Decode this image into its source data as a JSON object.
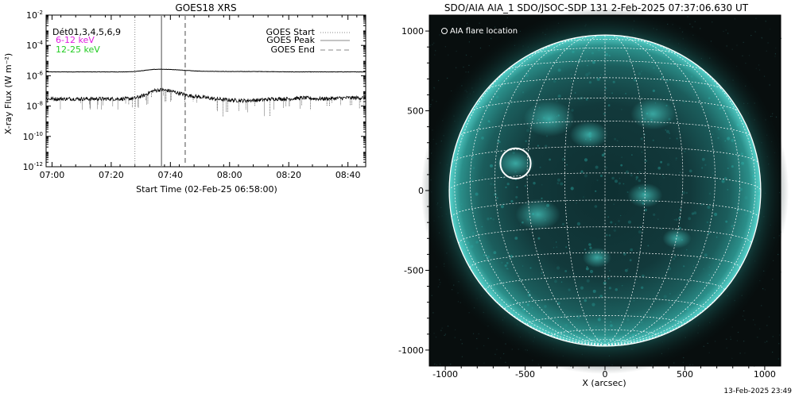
{
  "left_panel": {
    "title": "GOES18 XRS",
    "detector_text": "Dét01,3,4,5,6,9",
    "band_low_label": "6-12 keV",
    "band_high_label": "12-25 keV",
    "legend": {
      "start": "GOES Start",
      "peak": "GOES Peak",
      "end": "GOES End"
    },
    "xlabel": "Start Time (02-Feb-25 06:58:00)",
    "ylabel": "X-ray Flux (W m⁻²)"
  },
  "right_panel": {
    "title": "SDO/AIA AIA_1 SDO/JSOC-SDP 131  2-Feb-2025 07:37:06.630 UT",
    "flare_legend": "AIA flare location",
    "xlabel": "X (arcsec)",
    "footer_timestamp": "13-Feb-2025 23:49"
  },
  "colors": {
    "band_low": "#e01ee0",
    "band_high": "#22cc22",
    "sun_cyan": "#2fbfb8"
  },
  "chart_data": [
    {
      "type": "line",
      "title": "GOES18 XRS",
      "xlabel": "Start Time (02-Feb-25 06:58:00)",
      "ylabel": "X-ray Flux (W m^-2)",
      "yscale": "log",
      "xlim_minutes_after_0700": [
        -2,
        106
      ],
      "ylim": [
        1e-12,
        0.01
      ],
      "x_ticks": [
        "07:00",
        "07:20",
        "07:40",
        "08:00",
        "08:20",
        "08:40"
      ],
      "x_tick_minutes": [
        0,
        20,
        40,
        60,
        80,
        100
      ],
      "y_tick_exponents": [
        -12,
        -10,
        -8,
        -6,
        -4,
        -2
      ],
      "markers": {
        "start_minute": 28,
        "peak_minute": 37,
        "end_minute": 45
      },
      "series": [
        {
          "name": "6-12 keV",
          "x_minutes": [
            -2,
            0,
            10,
            20,
            25,
            28,
            31,
            34,
            37,
            40,
            43,
            46,
            50,
            60,
            70,
            80,
            90,
            100,
            106
          ],
          "y": [
            1.8e-06,
            1.8e-06,
            1.8e-06,
            1.8e-06,
            1.8e-06,
            1.9e-06,
            2.2e-06,
            2.6e-06,
            2.7e-06,
            2.6e-06,
            2.4e-06,
            2.2e-06,
            2e-06,
            1.9e-06,
            1.9e-06,
            1.8e-06,
            1.8e-06,
            1.8e-06,
            1.8e-06
          ]
        },
        {
          "name": "12-25 keV",
          "x_minutes": [
            -2,
            0,
            10,
            20,
            25,
            28,
            31,
            34,
            37,
            40,
            43,
            46,
            50,
            55,
            60,
            65,
            70,
            75,
            80,
            85,
            90,
            95,
            100,
            106
          ],
          "y": [
            3e-08,
            3e-08,
            3e-08,
            3e-08,
            3e-08,
            3.3e-08,
            5e-08,
            1e-07,
            1.2e-07,
            1e-07,
            7e-08,
            5e-08,
            4e-08,
            3e-08,
            2.5e-08,
            2.3e-08,
            2.5e-08,
            3e-08,
            3e-08,
            3.5e-08,
            3e-08,
            3.2e-08,
            3.5e-08,
            3.5e-08
          ]
        }
      ]
    },
    {
      "type": "heatmap",
      "title": "SDO/AIA AIA_1 SDO/JSOC-SDP 131  2-Feb-2025 07:37:06.630 UT",
      "xlabel": "X (arcsec)",
      "ylabel": "",
      "xlim": [
        -1100,
        1100
      ],
      "ylim": [
        -1100,
        1100
      ],
      "x_ticks": [
        -1000,
        -500,
        0,
        500,
        1000
      ],
      "y_ticks": [
        -1000,
        -500,
        0,
        500,
        1000
      ],
      "solar_radius_arcsec": 975,
      "flare_location_arcsec": {
        "x": -560,
        "y": 170,
        "radius": 95
      },
      "grid": true
    }
  ]
}
